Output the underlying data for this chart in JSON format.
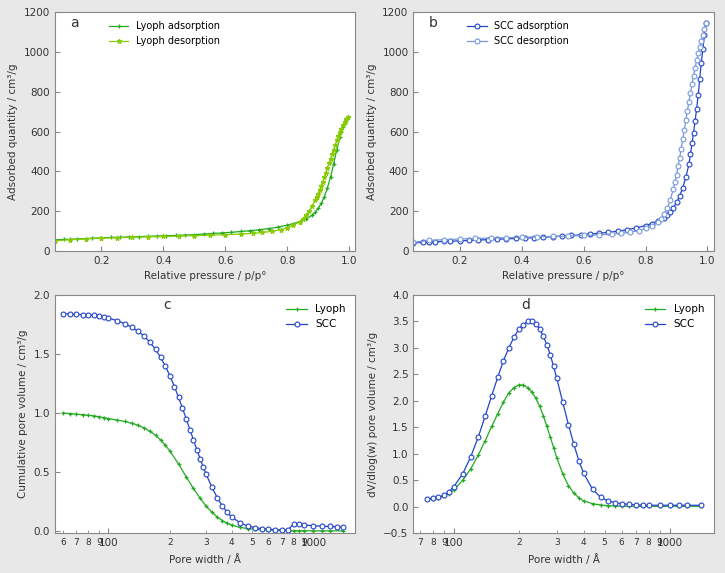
{
  "panel_a": {
    "label": "a",
    "lyoph_ads_x": [
      0.05,
      0.08,
      0.1,
      0.12,
      0.15,
      0.17,
      0.2,
      0.23,
      0.26,
      0.29,
      0.32,
      0.35,
      0.38,
      0.41,
      0.44,
      0.47,
      0.5,
      0.53,
      0.56,
      0.59,
      0.62,
      0.65,
      0.68,
      0.71,
      0.74,
      0.77,
      0.8,
      0.82,
      0.84,
      0.86,
      0.88,
      0.89,
      0.9,
      0.91,
      0.92,
      0.93,
      0.94,
      0.95,
      0.96,
      0.97,
      0.975,
      0.98,
      0.985,
      0.99,
      0.995
    ],
    "lyoph_ads_y": [
      55,
      57,
      58,
      59,
      61,
      63,
      65,
      67,
      68,
      70,
      71,
      73,
      74,
      76,
      77,
      79,
      81,
      84,
      87,
      90,
      93,
      97,
      101,
      106,
      112,
      119,
      129,
      137,
      147,
      160,
      178,
      193,
      213,
      238,
      272,
      318,
      372,
      438,
      508,
      572,
      598,
      622,
      642,
      658,
      672
    ],
    "lyoph_des_x": [
      0.995,
      0.99,
      0.985,
      0.98,
      0.975,
      0.97,
      0.965,
      0.96,
      0.955,
      0.95,
      0.945,
      0.94,
      0.935,
      0.93,
      0.925,
      0.92,
      0.915,
      0.91,
      0.905,
      0.9,
      0.895,
      0.89,
      0.88,
      0.87,
      0.86,
      0.85,
      0.84,
      0.82,
      0.8,
      0.78,
      0.75,
      0.72,
      0.69,
      0.65,
      0.6,
      0.55,
      0.5,
      0.45,
      0.4,
      0.35,
      0.3,
      0.25,
      0.2,
      0.15,
      0.1,
      0.05
    ],
    "lyoph_des_y": [
      672,
      662,
      648,
      632,
      615,
      597,
      577,
      555,
      532,
      508,
      486,
      462,
      440,
      416,
      393,
      370,
      348,
      328,
      308,
      288,
      270,
      253,
      223,
      198,
      178,
      160,
      146,
      128,
      116,
      106,
      98,
      92,
      88,
      84,
      81,
      78,
      76,
      74,
      72,
      70,
      68,
      66,
      63,
      60,
      56,
      50
    ],
    "ads_color": "#22aa22",
    "des_color": "#88cc00",
    "ylabel": "Adsorbed quantity / cm³/g",
    "xlabel": "Relative pressure / p/p°",
    "ylim": [
      0,
      1200
    ],
    "yticks": [
      0,
      200,
      400,
      600,
      800,
      1000,
      1200
    ],
    "xlim": [
      0.05,
      1.02
    ],
    "xticks": [
      0.2,
      0.4,
      0.6,
      0.8,
      1.0
    ]
  },
  "panel_b": {
    "label": "b",
    "scc_ads_x": [
      0.05,
      0.08,
      0.1,
      0.12,
      0.15,
      0.17,
      0.2,
      0.23,
      0.26,
      0.29,
      0.32,
      0.35,
      0.38,
      0.41,
      0.44,
      0.47,
      0.5,
      0.53,
      0.56,
      0.59,
      0.62,
      0.65,
      0.68,
      0.71,
      0.74,
      0.77,
      0.8,
      0.82,
      0.84,
      0.86,
      0.87,
      0.88,
      0.89,
      0.9,
      0.91,
      0.92,
      0.93,
      0.94,
      0.945,
      0.95,
      0.955,
      0.96,
      0.965,
      0.97,
      0.975,
      0.98,
      0.985,
      0.99,
      0.995
    ],
    "scc_ads_y": [
      40,
      42,
      43,
      45,
      47,
      48,
      50,
      52,
      54,
      56,
      58,
      60,
      62,
      64,
      66,
      68,
      71,
      74,
      77,
      80,
      84,
      88,
      93,
      99,
      106,
      115,
      127,
      137,
      150,
      167,
      180,
      197,
      217,
      243,
      275,
      317,
      370,
      435,
      485,
      540,
      595,
      655,
      715,
      785,
      865,
      945,
      1015,
      1085,
      1148
    ],
    "scc_des_x": [
      0.995,
      0.99,
      0.985,
      0.98,
      0.975,
      0.97,
      0.965,
      0.96,
      0.955,
      0.95,
      0.945,
      0.94,
      0.935,
      0.93,
      0.925,
      0.92,
      0.915,
      0.91,
      0.905,
      0.9,
      0.895,
      0.89,
      0.88,
      0.87,
      0.86,
      0.85,
      0.84,
      0.82,
      0.8,
      0.78,
      0.75,
      0.72,
      0.69,
      0.65,
      0.6,
      0.55,
      0.5,
      0.45,
      0.4,
      0.35,
      0.3,
      0.25,
      0.2,
      0.15,
      0.1,
      0.05
    ],
    "scc_des_y": [
      1148,
      1118,
      1088,
      1058,
      1026,
      993,
      958,
      920,
      880,
      838,
      795,
      750,
      703,
      656,
      608,
      560,
      513,
      468,
      425,
      383,
      346,
      312,
      258,
      213,
      183,
      160,
      143,
      126,
      113,
      102,
      94,
      88,
      84,
      80,
      77,
      74,
      72,
      70,
      68,
      66,
      64,
      62,
      59,
      56,
      52,
      42
    ],
    "ads_color": "#2244cc",
    "des_color": "#7799dd",
    "ylabel": "Adsorbed quantity / cm³/g",
    "xlabel": "Relative pressure / p/p°",
    "ylim": [
      0,
      1200
    ],
    "yticks": [
      0,
      200,
      400,
      600,
      800,
      1000,
      1200
    ],
    "xlim": [
      0.05,
      1.02
    ],
    "xticks": [
      0.2,
      0.4,
      0.6,
      0.8,
      1.0
    ]
  },
  "panel_c": {
    "label": "c",
    "lyoph_x": [
      60,
      65,
      70,
      75,
      80,
      85,
      90,
      95,
      100,
      110,
      120,
      130,
      140,
      150,
      160,
      170,
      180,
      190,
      200,
      220,
      240,
      260,
      280,
      300,
      320,
      340,
      360,
      380,
      400,
      440,
      480,
      520,
      560,
      600,
      650,
      700,
      750,
      800,
      850,
      900,
      1000,
      1100,
      1200,
      1400
    ],
    "lyoph_y": [
      1.0,
      0.995,
      0.99,
      0.985,
      0.98,
      0.975,
      0.968,
      0.96,
      0.952,
      0.94,
      0.928,
      0.913,
      0.895,
      0.872,
      0.844,
      0.81,
      0.77,
      0.725,
      0.675,
      0.568,
      0.458,
      0.36,
      0.278,
      0.21,
      0.158,
      0.118,
      0.088,
      0.066,
      0.05,
      0.03,
      0.02,
      0.014,
      0.01,
      0.008,
      0.006,
      0.004,
      0.003,
      0.003,
      0.002,
      0.002,
      0.001,
      0.001,
      0.001,
      0.001
    ],
    "scc_x": [
      60,
      65,
      70,
      75,
      80,
      85,
      90,
      95,
      100,
      110,
      120,
      130,
      140,
      150,
      160,
      170,
      180,
      190,
      200,
      210,
      220,
      230,
      240,
      250,
      260,
      270,
      280,
      290,
      300,
      320,
      340,
      360,
      380,
      400,
      440,
      480,
      520,
      560,
      600,
      650,
      700,
      750,
      800,
      850,
      900,
      1000,
      1100,
      1200,
      1300,
      1400
    ],
    "scc_y": [
      1.84,
      1.84,
      1.835,
      1.833,
      1.83,
      1.826,
      1.82,
      1.813,
      1.804,
      1.783,
      1.757,
      1.727,
      1.691,
      1.648,
      1.597,
      1.538,
      1.47,
      1.395,
      1.312,
      1.224,
      1.132,
      1.04,
      0.948,
      0.858,
      0.772,
      0.69,
      0.614,
      0.544,
      0.48,
      0.37,
      0.281,
      0.211,
      0.158,
      0.118,
      0.067,
      0.042,
      0.028,
      0.02,
      0.015,
      0.011,
      0.009,
      0.007,
      0.06,
      0.055,
      0.05,
      0.045,
      0.04,
      0.038,
      0.035,
      0.032
    ],
    "lyoph_color": "#22aa22",
    "scc_color": "#2244cc",
    "ylabel": "Cumulative pore volume / cm³/g",
    "xlabel": "Pore width / Å",
    "ylim": [
      -0.02,
      2.0
    ],
    "yticks": [
      0.0,
      0.5,
      1.0,
      1.5,
      2.0
    ],
    "xlim": [
      55,
      1600
    ]
  },
  "panel_d": {
    "label": "d",
    "lyoph_x": [
      75,
      80,
      85,
      90,
      95,
      100,
      110,
      120,
      130,
      140,
      150,
      160,
      170,
      180,
      190,
      200,
      210,
      220,
      230,
      240,
      250,
      260,
      270,
      280,
      290,
      300,
      320,
      340,
      360,
      380,
      400,
      440,
      480,
      520,
      560,
      600,
      650,
      700,
      750,
      800,
      900,
      1000,
      1100,
      1200,
      1400
    ],
    "lyoph_y": [
      0.14,
      0.15,
      0.17,
      0.2,
      0.25,
      0.32,
      0.5,
      0.72,
      0.98,
      1.25,
      1.52,
      1.76,
      1.98,
      2.15,
      2.25,
      2.3,
      2.3,
      2.25,
      2.17,
      2.05,
      1.9,
      1.72,
      1.52,
      1.32,
      1.12,
      0.93,
      0.62,
      0.4,
      0.26,
      0.17,
      0.11,
      0.06,
      0.035,
      0.022,
      0.015,
      0.012,
      0.01,
      0.01,
      0.01,
      0.01,
      0.01,
      0.01,
      0.01,
      0.01,
      0.01
    ],
    "scc_x": [
      75,
      80,
      85,
      90,
      95,
      100,
      110,
      120,
      130,
      140,
      150,
      160,
      170,
      180,
      190,
      200,
      210,
      220,
      230,
      240,
      250,
      260,
      270,
      280,
      290,
      300,
      320,
      340,
      360,
      380,
      400,
      440,
      480,
      520,
      560,
      600,
      650,
      700,
      750,
      800,
      900,
      1000,
      1100,
      1200,
      1400
    ],
    "scc_y": [
      0.15,
      0.16,
      0.18,
      0.22,
      0.28,
      0.38,
      0.62,
      0.95,
      1.32,
      1.72,
      2.1,
      2.45,
      2.76,
      3.0,
      3.2,
      3.35,
      3.44,
      3.5,
      3.5,
      3.45,
      3.36,
      3.22,
      3.06,
      2.87,
      2.65,
      2.43,
      1.97,
      1.55,
      1.18,
      0.87,
      0.63,
      0.33,
      0.18,
      0.11,
      0.08,
      0.06,
      0.045,
      0.038,
      0.033,
      0.03,
      0.03,
      0.03,
      0.03,
      0.03,
      0.03
    ],
    "lyoph_color": "#22aa22",
    "scc_color": "#2244cc",
    "ylabel": "dV/dlog(w) pore volume / cm³/g",
    "xlabel": "Pore width / Å",
    "ylim": [
      -0.5,
      4.0
    ],
    "yticks": [
      -0.5,
      0.0,
      0.5,
      1.0,
      1.5,
      2.0,
      2.5,
      3.0,
      3.5,
      4.0
    ],
    "xlim": [
      65,
      1600
    ]
  },
  "figure_bg": "#e8e8e8",
  "axes_bg": "#ffffff",
  "spine_color": "#888888",
  "tick_color": "#555555"
}
